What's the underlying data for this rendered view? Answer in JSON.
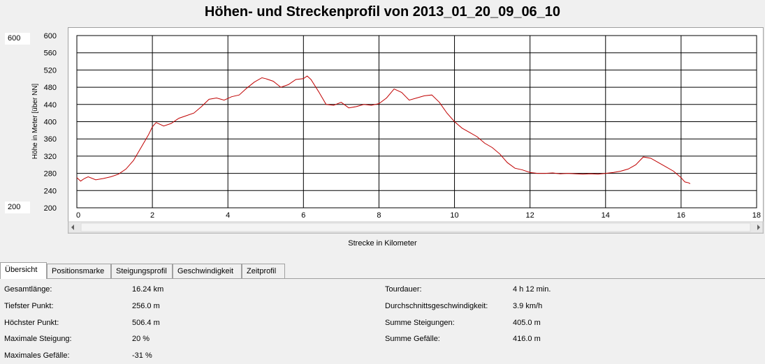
{
  "chart_data": {
    "type": "line",
    "title": "Höhen- und Streckenprofil von 2013_01_20_09_06_10",
    "xlabel": "Strecke in Kilometer",
    "ylabel": "Höhe in Meter [über NN]",
    "xlim": [
      0,
      18
    ],
    "ylim": [
      200,
      600
    ],
    "x_ticks": [
      0,
      2,
      4,
      6,
      8,
      10,
      12,
      14,
      16,
      18
    ],
    "y_ticks": [
      200,
      240,
      280,
      320,
      360,
      400,
      440,
      480,
      520,
      560,
      600
    ],
    "grid": true,
    "line_color": "#c00000",
    "series": [
      {
        "x": [
          0,
          0.1,
          0.2,
          0.3,
          0.5,
          0.7,
          0.9,
          1.1,
          1.3,
          1.5,
          1.7,
          1.9,
          2.0,
          2.1,
          2.3,
          2.5,
          2.7,
          2.9,
          3.1,
          3.3,
          3.5,
          3.7,
          3.9,
          4.1,
          4.3,
          4.5,
          4.7,
          4.9,
          5.0,
          5.2,
          5.4,
          5.6,
          5.8,
          6.0,
          6.1,
          6.2,
          6.4,
          6.6,
          6.8,
          7.0,
          7.2,
          7.4,
          7.6,
          7.8,
          8.0,
          8.2,
          8.4,
          8.6,
          8.8,
          9.0,
          9.2,
          9.4,
          9.6,
          9.8,
          10.0,
          10.2,
          10.4,
          10.6,
          10.8,
          11.0,
          11.2,
          11.4,
          11.6,
          11.8,
          12.0,
          12.2,
          12.4,
          12.6,
          12.8,
          13.0,
          13.2,
          13.4,
          13.6,
          13.8,
          14.0,
          14.2,
          14.4,
          14.6,
          14.8,
          15.0,
          15.2,
          15.4,
          15.6,
          15.8,
          16.0,
          16.1,
          16.2,
          16.24
        ],
        "y": [
          270,
          262,
          268,
          272,
          265,
          268,
          272,
          278,
          290,
          310,
          340,
          370,
          388,
          398,
          390,
          396,
          408,
          414,
          420,
          435,
          452,
          455,
          450,
          458,
          462,
          478,
          492,
          502,
          500,
          494,
          480,
          486,
          498,
          500,
          506,
          498,
          470,
          440,
          438,
          445,
          432,
          435,
          440,
          438,
          442,
          455,
          476,
          468,
          450,
          455,
          460,
          462,
          445,
          420,
          400,
          385,
          375,
          365,
          350,
          340,
          325,
          305,
          292,
          288,
          282,
          280,
          280,
          281,
          279,
          280,
          279,
          278,
          279,
          278,
          280,
          282,
          285,
          290,
          300,
          318,
          315,
          305,
          295,
          285,
          270,
          260,
          258,
          256
        ]
      }
    ]
  },
  "range": {
    "max": "600",
    "min": "200"
  },
  "tabs": [
    {
      "label": "Übersicht",
      "active": true
    },
    {
      "label": "Positionsmarke"
    },
    {
      "label": "Steigungsprofil"
    },
    {
      "label": "Geschwindigkeit"
    },
    {
      "label": "Zeitprofil"
    }
  ],
  "stats": {
    "gesamtlaenge": {
      "label": "Gesamtlänge:",
      "value": "16.24 km"
    },
    "tiefster": {
      "label": "Tiefster Punkt:",
      "value": "256.0 m"
    },
    "hoechster": {
      "label": "Höchster Punkt:",
      "value": "506.4 m"
    },
    "max_steigung": {
      "label": "Maximale Steigung:",
      "value": "20 %"
    },
    "max_gefaelle": {
      "label": "Maximales Gefälle:",
      "value": "-31 %"
    },
    "tourdauer": {
      "label": "Tourdauer:",
      "value": "4 h 12 min."
    },
    "durchschnitt": {
      "label": "Durchschnittsgeschwindigkeit:",
      "value": "3.9 km/h"
    },
    "summe_steigungen": {
      "label": "Summe Steigungen:",
      "value": "405.0 m"
    },
    "summe_gefaelle": {
      "label": "Summe Gefälle:",
      "value": "416.0 m"
    }
  }
}
